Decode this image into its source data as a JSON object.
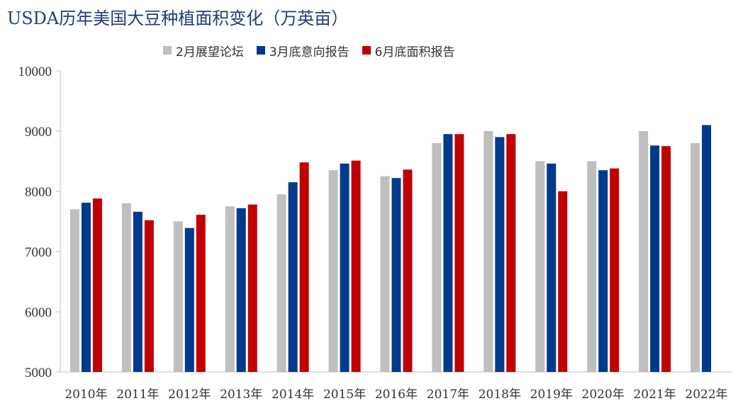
{
  "title": "USDA历年美国大豆种植面积变化（万英亩）",
  "colors": {
    "s1": "#bfbfbf",
    "s2": "#003a8c",
    "s3": "#c00000",
    "axis": "#bfbfbf",
    "text": "#333333"
  },
  "chart_data": {
    "type": "bar",
    "title": "USDA历年美国大豆种植面积变化（万英亩）",
    "xlabel": "",
    "ylabel": "",
    "ylim": [
      5000,
      10000
    ],
    "yticks": [
      10000,
      9000,
      8000,
      7000,
      6000,
      5000
    ],
    "grid": false,
    "legend_position": "top",
    "categories": [
      "2010年",
      "2011年",
      "2012年",
      "2013年",
      "2014年",
      "2015年",
      "2016年",
      "2017年",
      "2018年",
      "2019年",
      "2020年",
      "2021年",
      "2022年"
    ],
    "series": [
      {
        "name": "2月展望论坛",
        "color": "#bfbfbf",
        "values": [
          7700,
          7800,
          7500,
          7750,
          7950,
          8350,
          8250,
          8800,
          9000,
          8500,
          8500,
          9000,
          8800
        ]
      },
      {
        "name": "3月底意向报告",
        "color": "#003a8c",
        "values": [
          7810,
          7660,
          7390,
          7720,
          8150,
          8460,
          8220,
          8950,
          8900,
          8460,
          8350,
          8760,
          9100
        ]
      },
      {
        "name": "6月底面积报告",
        "color": "#c00000",
        "values": [
          7880,
          7520,
          7610,
          7780,
          8480,
          8510,
          8360,
          8950,
          8950,
          8000,
          8380,
          8750,
          null
        ]
      }
    ]
  }
}
